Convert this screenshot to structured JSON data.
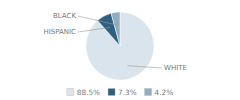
{
  "chart_data": {
    "type": "pie",
    "categories": [
      "WHITE",
      "HISPANIC",
      "BLACK"
    ],
    "values": [
      88.5,
      7.3,
      4.2
    ],
    "value_labels": [
      "88.5%",
      "7.3%",
      "4.2%"
    ],
    "colors": [
      "#d9e4ec",
      "#2e6080",
      "#8faebf"
    ],
    "legend": "bottom"
  }
}
